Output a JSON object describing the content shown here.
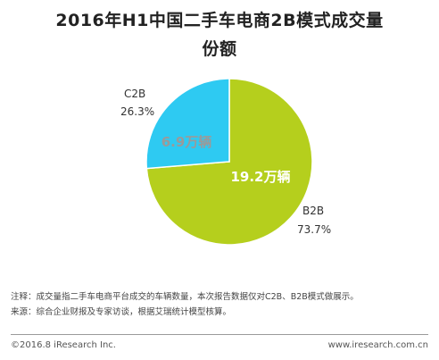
{
  "title_line1": "2016年H1中国二手车电商2B模式成交量",
  "title_line2": "份额",
  "chart_data": {
    "type": "pie",
    "slices": [
      {
        "name": "B2B",
        "value": 73.7,
        "pct_label": "73.7%",
        "inner_label": "19.2万辆",
        "color": "#b5cf1d"
      },
      {
        "name": "C2B",
        "value": 26.3,
        "pct_label": "26.3%",
        "inner_label": "6.9万辆",
        "color": "#2ecaf2"
      }
    ],
    "legend": "none"
  },
  "notes": {
    "note": "注释：成交量指二手车电商平台成交的车辆数量，本次报告数据仅对C2B、B2B模式做展示。",
    "source": "来源：综合企业财报及专家访谈，根据艾瑞统计模型核算。"
  },
  "footer": {
    "copyright": "©2016.8 iResearch Inc.",
    "website": "www.iresearch.com.cn"
  }
}
